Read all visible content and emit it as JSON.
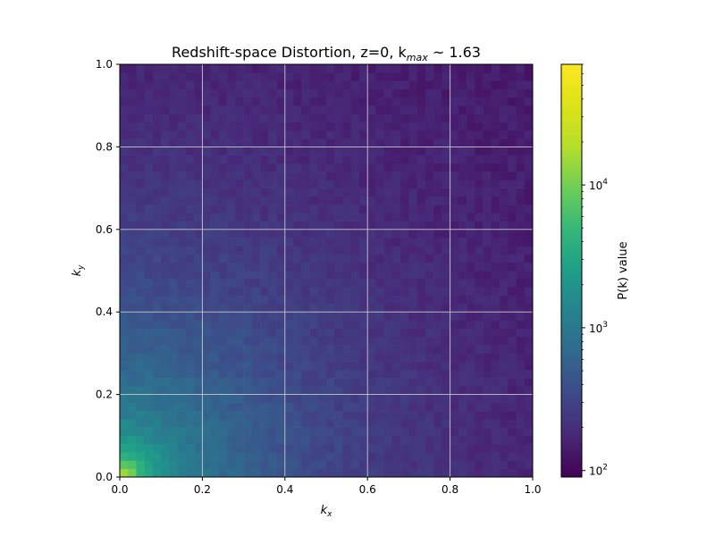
{
  "chart_data": {
    "type": "heatmap",
    "title": "Redshift-space Distortion, z=0, k",
    "title_sub": "max",
    "title_suffix": " ~ 1.63",
    "xlabel": "k",
    "xlabel_sub": "x",
    "ylabel": "k",
    "ylabel_sub": "y",
    "xlim": [
      0.0,
      1.0
    ],
    "ylim": [
      0.0,
      1.0
    ],
    "x_ticks": [
      "0.0",
      "0.2",
      "0.4",
      "0.6",
      "0.8",
      "1.0"
    ],
    "y_ticks": [
      "0.0",
      "0.2",
      "0.4",
      "0.6",
      "0.8",
      "1.0"
    ],
    "grid": true,
    "colormap": "viridis",
    "colorbar": {
      "label": "P(k) value",
      "scale": "log",
      "range": [
        90,
        70000
      ],
      "ticks": [
        {
          "value": 100,
          "base": "10",
          "exp": "2"
        },
        {
          "value": 1000,
          "base": "10",
          "exp": "3"
        },
        {
          "value": 10000,
          "base": "10",
          "exp": "4"
        }
      ]
    },
    "bins": 50,
    "values_model": "log10 P decreases with |k| from ~4.8 near k=0 to ~2.1 at k=(1,1)",
    "notable_values": [
      {
        "kx": 0.01,
        "ky": 0.01,
        "value": 60000
      },
      {
        "kx": 0.05,
        "ky": 0.05,
        "value": 20000
      },
      {
        "kx": 0.2,
        "ky": 0.2,
        "value": 2000
      },
      {
        "kx": 0.5,
        "ky": 0.5,
        "value": 400
      },
      {
        "kx": 1.0,
        "ky": 1.0,
        "value": 120
      },
      {
        "kx": 0.23,
        "ky": 0.1,
        "value": 900
      }
    ]
  }
}
